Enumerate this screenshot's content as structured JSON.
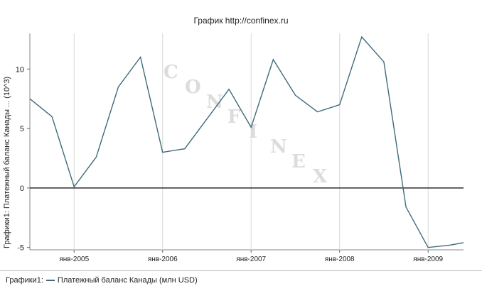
{
  "chart_data": {
    "type": "line",
    "title": "График   http://confinex.ru",
    "ylabel": "Графики1: Платежный баланс Канады ... (10^3)",
    "xlabel": "",
    "ylim": [
      -5.2,
      13
    ],
    "yticks": [
      -5,
      0,
      5,
      10
    ],
    "xlim": [
      0,
      19.6
    ],
    "xticks": [
      {
        "x": 2,
        "label": "янв-2005"
      },
      {
        "x": 6,
        "label": "янв-2006"
      },
      {
        "x": 10,
        "label": "янв-2007"
      },
      {
        "x": 14,
        "label": "янв-2008"
      },
      {
        "x": 18,
        "label": "янв-2009"
      }
    ],
    "legend_position": "bottom",
    "legend_prefix": "Графики1:",
    "grid": "vertical",
    "zero_line": true,
    "series": [
      {
        "name": "Платежный баланс Канады (млн USD)",
        "color": "#3f6b7a",
        "x": [
          0,
          1,
          2,
          3,
          4,
          5,
          6,
          7,
          8,
          9,
          10,
          11,
          12,
          13,
          14,
          15,
          16,
          17,
          18,
          19,
          19.6
        ],
        "values": [
          7.5,
          6.0,
          0.1,
          2.6,
          8.5,
          11.0,
          3.0,
          3.3,
          5.8,
          8.3,
          5.1,
          10.8,
          7.8,
          6.4,
          7.0,
          12.7,
          10.6,
          -1.6,
          -5.0,
          -4.8,
          -4.6
        ]
      }
    ]
  },
  "watermark": "CONFINEX"
}
